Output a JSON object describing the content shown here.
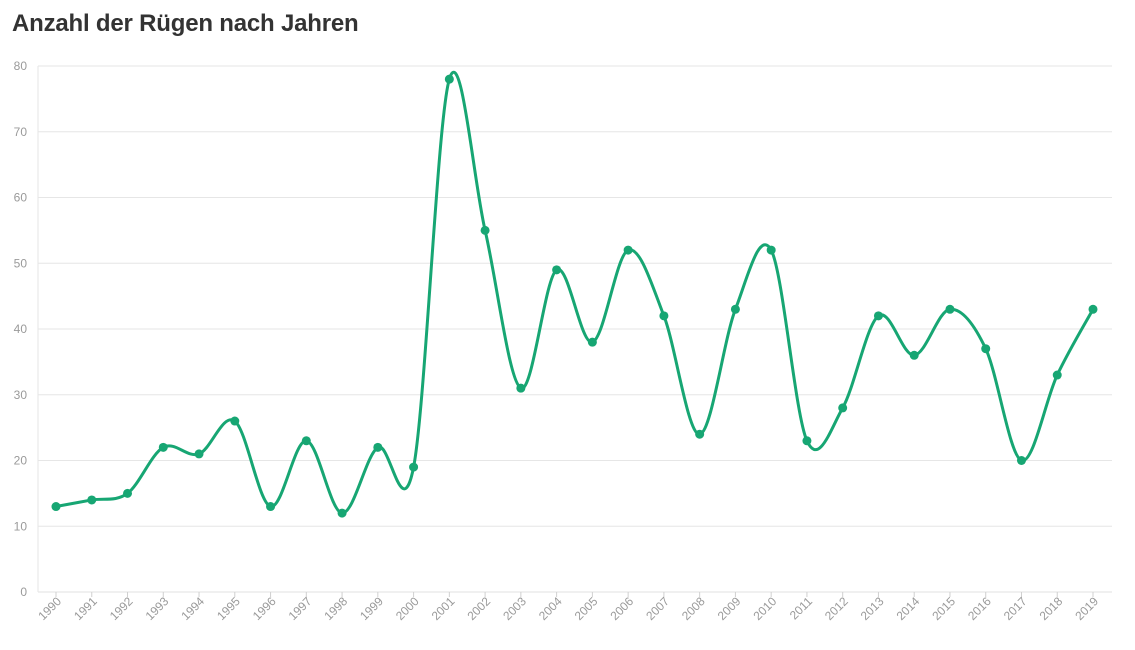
{
  "chart_data": {
    "type": "line",
    "title": "Anzahl der Rügen nach Jahren",
    "xlabel": "",
    "ylabel": "",
    "ylim": [
      0,
      80
    ],
    "yticks": [
      0,
      10,
      20,
      30,
      40,
      50,
      60,
      70,
      80
    ],
    "grid": true,
    "smooth": true,
    "markers": true,
    "colors": {
      "line": "#17a673",
      "grid": "#e6e6e6",
      "tick_text": "#9a9a9a",
      "title": "#333333"
    },
    "categories": [
      "1990",
      "1991",
      "1992",
      "1993",
      "1994",
      "1995",
      "1996",
      "1997",
      "1998",
      "1999",
      "2000",
      "2001",
      "2002",
      "2003",
      "2004",
      "2005",
      "2006",
      "2007",
      "2008",
      "2009",
      "2010",
      "2011",
      "2012",
      "2013",
      "2014",
      "2015",
      "2016",
      "2017",
      "2018",
      "2019"
    ],
    "series": [
      {
        "values": [
          13,
          14,
          15,
          22,
          21,
          26,
          13,
          23,
          12,
          22,
          19,
          78,
          55,
          31,
          49,
          38,
          52,
          42,
          24,
          43,
          52,
          23,
          28,
          42,
          36,
          43,
          37,
          20,
          33,
          43
        ]
      }
    ]
  }
}
